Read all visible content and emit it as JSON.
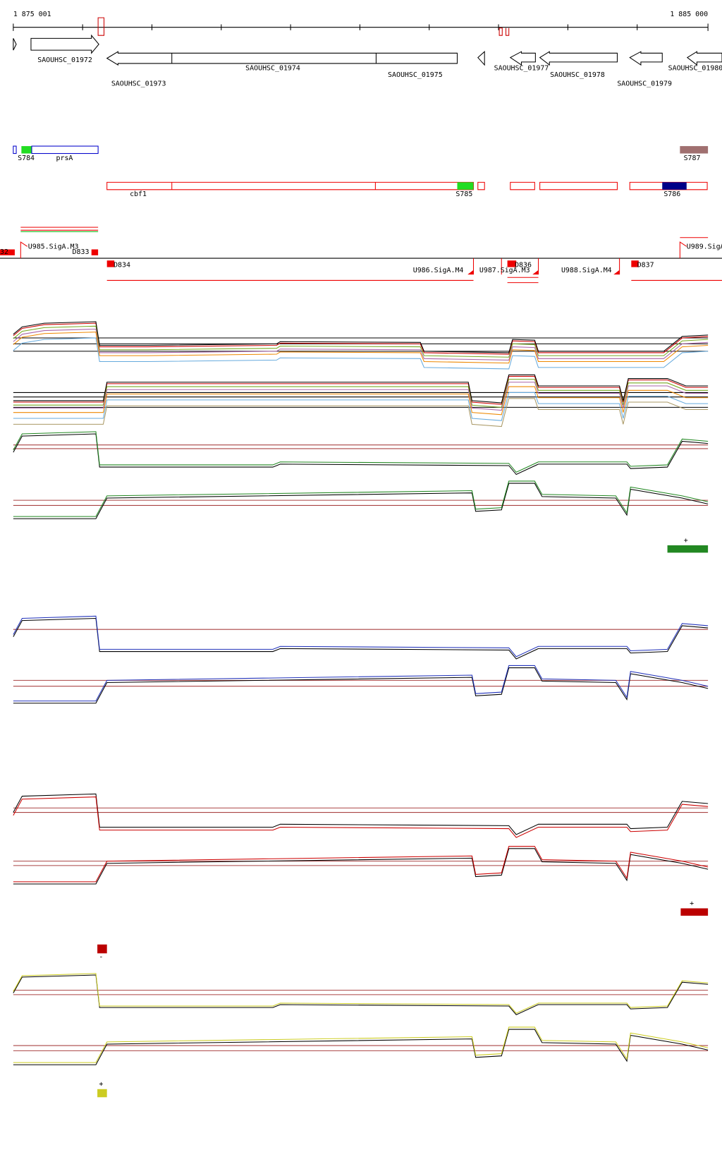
{
  "header": {
    "start": "1 875 001",
    "end": "1 885 000"
  },
  "genes": [
    {
      "label": "SAOUHSC_01972"
    },
    {
      "label": "SAOUHSC_01973"
    },
    {
      "label": "SAOUHSC_01974"
    },
    {
      "label": "SAOUHSC_01975"
    },
    {
      "label": "SAOUHSC_01977"
    },
    {
      "label": "SAOUHSC_01978"
    },
    {
      "label": "SAOUHSC_01979"
    },
    {
      "label": "SAOUHSC_01980"
    }
  ],
  "features": [
    {
      "label": "S784"
    },
    {
      "label": "prsA"
    },
    {
      "label": "S787"
    },
    {
      "label": "cbf1"
    },
    {
      "label": "S785"
    },
    {
      "label": "S786"
    }
  ],
  "promoters": [
    {
      "label": "32"
    },
    {
      "label": "U985.SigA.M3"
    },
    {
      "label": "D833"
    },
    {
      "label": "U989.SigA"
    },
    {
      "label": "D834"
    },
    {
      "label": "U986.SigA.M4"
    },
    {
      "label": "U987.SigA.M3"
    },
    {
      "label": "D836"
    },
    {
      "label": "U988.SigA.M4"
    },
    {
      "label": "D837"
    }
  ],
  "strand_markers": [
    "+",
    "+",
    "-",
    "+"
  ]
}
